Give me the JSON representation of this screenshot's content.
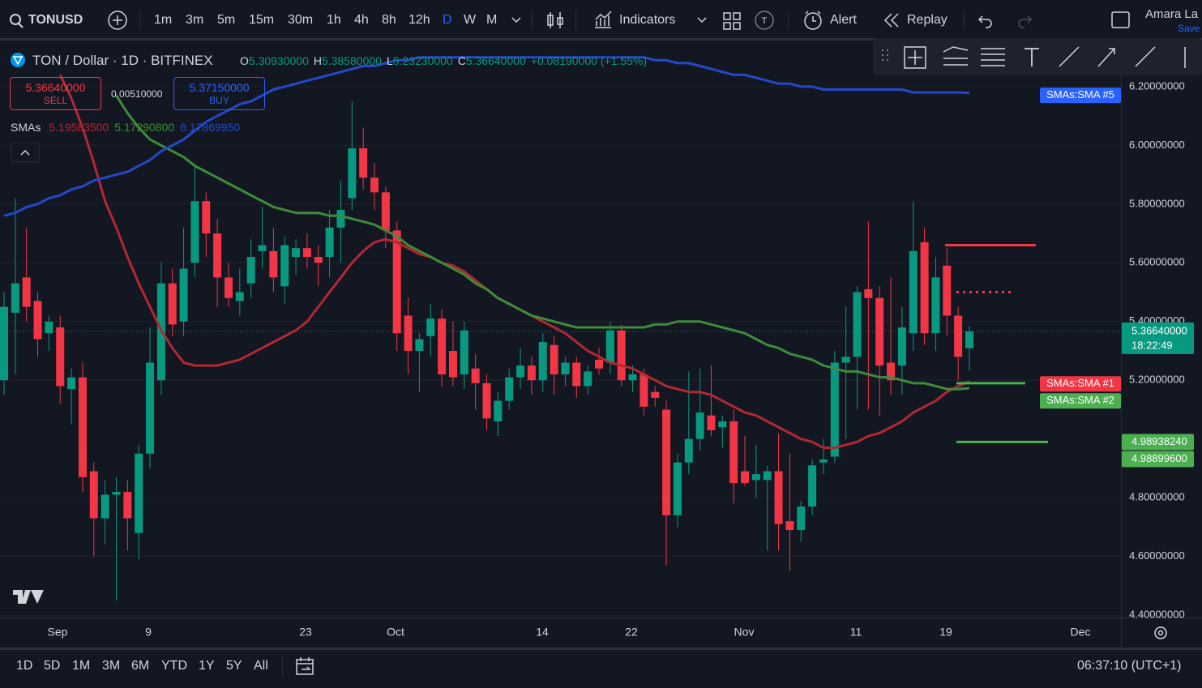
{
  "toolbar": {
    "symbol": "TONUSD",
    "intervals": [
      "1m",
      "3m",
      "5m",
      "15m",
      "30m",
      "1h",
      "4h",
      "8h",
      "12h",
      "D",
      "W",
      "M"
    ],
    "active_interval": "D",
    "indicators": "Indicators",
    "alert": "Alert",
    "replay": "Replay",
    "user": "Amara La",
    "save": "Save"
  },
  "legend": {
    "title": "TON / Dollar · 1D · BITFINEX",
    "ohlc": [
      {
        "key": "O",
        "value": "5.30930000"
      },
      {
        "key": "H",
        "value": "5.38580000"
      },
      {
        "key": "L",
        "value": "5.23230000"
      },
      {
        "key": "C",
        "value": "5.36640000"
      }
    ],
    "change": "+0.08190000 (+1.55%)",
    "sell": {
      "price": "5.36640000",
      "label": "SELL"
    },
    "spread": "0.00510000",
    "buy": {
      "price": "5.37150000",
      "label": "BUY"
    },
    "indicator": {
      "name": "SMAs",
      "values": [
        "5.19583500",
        "5.17290800",
        "6.17869950"
      ]
    }
  },
  "chart_data": {
    "type": "candlestick",
    "up_color": "#089981",
    "down_color": "#f23645",
    "ohlc": [
      [
        5.2,
        5.5,
        5.15,
        5.45
      ],
      [
        5.43,
        5.82,
        5.22,
        5.53
      ],
      [
        5.55,
        5.72,
        5.4,
        5.45
      ],
      [
        5.47,
        5.5,
        5.28,
        5.34
      ],
      [
        5.36,
        5.42,
        5.3,
        5.4
      ],
      [
        5.38,
        5.42,
        5.12,
        5.18
      ],
      [
        5.17,
        5.24,
        5.05,
        5.21
      ],
      [
        5.21,
        5.26,
        4.82,
        4.87
      ],
      [
        4.89,
        4.92,
        4.6,
        4.73
      ],
      [
        4.73,
        4.86,
        4.64,
        4.81
      ],
      [
        4.81,
        4.87,
        4.45,
        4.82
      ],
      [
        4.82,
        4.86,
        4.62,
        4.73
      ],
      [
        4.68,
        4.98,
        4.59,
        4.95
      ],
      [
        4.95,
        5.38,
        4.9,
        5.26
      ],
      [
        5.2,
        5.6,
        5.15,
        5.53
      ],
      [
        5.53,
        5.58,
        5.35,
        5.39
      ],
      [
        5.4,
        5.72,
        5.35,
        5.58
      ],
      [
        5.6,
        5.93,
        5.55,
        5.81
      ],
      [
        5.81,
        5.84,
        5.62,
        5.7
      ],
      [
        5.7,
        5.75,
        5.45,
        5.55
      ],
      [
        5.55,
        5.6,
        5.45,
        5.48
      ],
      [
        5.47,
        5.58,
        5.42,
        5.5
      ],
      [
        5.53,
        5.68,
        5.48,
        5.62
      ],
      [
        5.64,
        5.79,
        5.58,
        5.66
      ],
      [
        5.64,
        5.72,
        5.5,
        5.55
      ],
      [
        5.52,
        5.69,
        5.46,
        5.66
      ],
      [
        5.62,
        5.68,
        5.56,
        5.65
      ],
      [
        5.65,
        5.7,
        5.58,
        5.62
      ],
      [
        5.62,
        5.66,
        5.52,
        5.6
      ],
      [
        5.62,
        5.78,
        5.55,
        5.72
      ],
      [
        5.72,
        5.88,
        5.6,
        5.78
      ],
      [
        5.82,
        6.15,
        5.78,
        5.99
      ],
      [
        5.99,
        6.06,
        5.85,
        5.89
      ],
      [
        5.89,
        5.94,
        5.78,
        5.84
      ],
      [
        5.84,
        5.86,
        5.65,
        5.71
      ],
      [
        5.71,
        5.74,
        5.3,
        5.36
      ],
      [
        5.42,
        5.48,
        5.22,
        5.3
      ],
      [
        5.3,
        5.36,
        5.16,
        5.34
      ],
      [
        5.35,
        5.46,
        5.28,
        5.41
      ],
      [
        5.41,
        5.44,
        5.18,
        5.22
      ],
      [
        5.3,
        5.4,
        5.18,
        5.21
      ],
      [
        5.22,
        5.4,
        5.17,
        5.37
      ],
      [
        5.24,
        5.29,
        5.1,
        5.19
      ],
      [
        5.19,
        5.22,
        5.03,
        5.07
      ],
      [
        5.06,
        5.16,
        5.01,
        5.13
      ],
      [
        5.13,
        5.24,
        5.1,
        5.21
      ],
      [
        5.21,
        5.31,
        5.17,
        5.25
      ],
      [
        5.25,
        5.28,
        5.15,
        5.2
      ],
      [
        5.2,
        5.36,
        5.16,
        5.33
      ],
      [
        5.32,
        5.35,
        5.15,
        5.22
      ],
      [
        5.22,
        5.28,
        5.18,
        5.26
      ],
      [
        5.26,
        5.28,
        5.14,
        5.18
      ],
      [
        5.18,
        5.25,
        5.15,
        5.23
      ],
      [
        5.27,
        5.31,
        5.22,
        5.24
      ],
      [
        5.26,
        5.4,
        5.22,
        5.37
      ],
      [
        5.37,
        5.39,
        5.18,
        5.2
      ],
      [
        5.2,
        5.25,
        5.16,
        5.22
      ],
      [
        5.22,
        5.24,
        5.08,
        5.11
      ],
      [
        5.16,
        5.18,
        5.11,
        5.14
      ],
      [
        5.1,
        5.13,
        4.57,
        4.74
      ],
      [
        4.74,
        4.95,
        4.7,
        4.92
      ],
      [
        4.92,
        5.23,
        4.88,
        5.0
      ],
      [
        5.0,
        5.24,
        4.96,
        5.09
      ],
      [
        5.08,
        5.25,
        5.01,
        5.03
      ],
      [
        5.04,
        5.08,
        4.97,
        5.06
      ],
      [
        5.06,
        5.1,
        4.78,
        4.85
      ],
      [
        4.89,
        5.01,
        4.84,
        4.85
      ],
      [
        4.86,
        4.98,
        4.8,
        4.88
      ],
      [
        4.86,
        4.91,
        4.62,
        4.89
      ],
      [
        4.89,
        5.02,
        4.62,
        4.71
      ],
      [
        4.72,
        4.95,
        4.55,
        4.69
      ],
      [
        4.69,
        4.79,
        4.65,
        4.77
      ],
      [
        4.77,
        4.93,
        4.74,
        4.91
      ],
      [
        4.92,
        5.0,
        4.88,
        4.93
      ],
      [
        4.94,
        5.3,
        4.92,
        5.26
      ],
      [
        5.26,
        5.45,
        5.0,
        5.28
      ],
      [
        5.28,
        5.52,
        5.1,
        5.5
      ],
      [
        5.51,
        5.74,
        5.1,
        5.48
      ],
      [
        5.48,
        5.52,
        5.08,
        5.25
      ],
      [
        5.26,
        5.55,
        5.15,
        5.2
      ],
      [
        5.25,
        5.45,
        5.15,
        5.38
      ],
      [
        5.36,
        5.81,
        5.3,
        5.64
      ],
      [
        5.67,
        5.72,
        5.32,
        5.36
      ],
      [
        5.36,
        5.62,
        5.3,
        5.55
      ],
      [
        5.59,
        5.65,
        5.35,
        5.42
      ],
      [
        5.42,
        5.45,
        5.2,
        5.28
      ],
      [
        5.3093,
        5.3858,
        5.2323,
        5.3664
      ]
    ],
    "series": [
      {
        "name": "SMAs:SMA #1",
        "color": "#b22833",
        "values": [
          null,
          null,
          null,
          null,
          null,
          6.24,
          6.16,
          6.06,
          5.94,
          5.81,
          5.72,
          5.62,
          5.53,
          5.45,
          5.37,
          5.31,
          5.26,
          5.25,
          5.25,
          5.25,
          5.26,
          5.27,
          5.29,
          5.31,
          5.33,
          5.35,
          5.37,
          5.4,
          5.45,
          5.5,
          5.55,
          5.6,
          5.64,
          5.67,
          5.68,
          5.67,
          5.65,
          5.63,
          5.62,
          5.6,
          5.59,
          5.57,
          5.54,
          5.51,
          5.48,
          5.46,
          5.44,
          5.42,
          5.4,
          5.38,
          5.36,
          5.33,
          5.3,
          5.28,
          5.26,
          5.25,
          5.24,
          5.22,
          5.2,
          5.18,
          5.17,
          5.16,
          5.16,
          5.15,
          5.13,
          5.11,
          5.09,
          5.08,
          5.06,
          5.04,
          5.02,
          5.0,
          4.99,
          4.97,
          4.97,
          4.98,
          4.99,
          5.01,
          5.02,
          5.04,
          5.06,
          5.09,
          5.11,
          5.13,
          5.16,
          5.18,
          5.195835
        ],
        "badge_color": "#f23645"
      },
      {
        "name": "SMAs:SMA #2",
        "color": "#3f8a3c",
        "values": [
          null,
          null,
          null,
          null,
          null,
          null,
          null,
          null,
          null,
          null,
          6.17,
          6.11,
          6.06,
          6.02,
          6.0,
          5.98,
          5.96,
          5.93,
          5.91,
          5.89,
          5.87,
          5.85,
          5.83,
          5.81,
          5.79,
          5.78,
          5.77,
          5.77,
          5.77,
          5.76,
          5.76,
          5.75,
          5.74,
          5.73,
          5.71,
          5.69,
          5.66,
          5.64,
          5.62,
          5.6,
          5.58,
          5.56,
          5.53,
          5.51,
          5.48,
          5.46,
          5.44,
          5.42,
          5.41,
          5.4,
          5.39,
          5.38,
          5.38,
          5.38,
          5.38,
          5.38,
          5.38,
          5.38,
          5.39,
          5.39,
          5.4,
          5.4,
          5.4,
          5.39,
          5.38,
          5.37,
          5.36,
          5.34,
          5.32,
          5.31,
          5.29,
          5.28,
          5.27,
          5.25,
          5.24,
          5.23,
          5.23,
          5.22,
          5.21,
          5.21,
          5.2,
          5.19,
          5.19,
          5.18,
          5.17,
          5.17,
          5.172908
        ],
        "badge_color": "#4caf50"
      },
      {
        "name": "SMAs:SMA #5",
        "color": "#2548c8",
        "values": [
          5.76,
          5.77,
          5.79,
          5.8,
          5.82,
          5.83,
          5.85,
          5.86,
          5.88,
          5.89,
          5.9,
          5.91,
          5.93,
          5.95,
          5.98,
          6.0,
          6.02,
          6.05,
          6.08,
          6.1,
          6.12,
          6.14,
          6.15,
          6.17,
          6.19,
          6.2,
          6.21,
          6.22,
          6.23,
          6.24,
          6.25,
          6.26,
          6.27,
          6.27,
          6.28,
          6.29,
          6.29,
          6.3,
          6.3,
          6.3,
          6.3,
          6.3,
          6.3,
          6.3,
          6.3,
          6.3,
          6.3,
          6.3,
          6.3,
          6.3,
          6.3,
          6.3,
          6.3,
          6.3,
          6.3,
          6.3,
          6.3,
          6.3,
          6.29,
          6.29,
          6.28,
          6.28,
          6.27,
          6.26,
          6.25,
          6.24,
          6.24,
          6.23,
          6.22,
          6.21,
          6.21,
          6.2,
          6.2,
          6.19,
          6.19,
          6.19,
          6.19,
          6.19,
          6.19,
          6.19,
          6.19,
          6.18,
          6.18,
          6.18,
          6.18,
          6.18,
          6.1786995
        ],
        "badge_color": "#2962ff"
      }
    ],
    "ylim": [
      4.392,
      6.357
    ],
    "yticks": [
      {
        "value": 6.2,
        "label": "6.20000000"
      },
      {
        "value": 6.0,
        "label": "6.00000000"
      },
      {
        "value": 5.8,
        "label": "5.80000000"
      },
      {
        "value": 5.6,
        "label": "5.60000000"
      },
      {
        "value": 5.4,
        "label": "5.40000000"
      },
      {
        "value": 5.2,
        "label": "5.20000000"
      },
      {
        "value": 4.8,
        "label": "4.80000000"
      },
      {
        "value": 4.6,
        "label": "4.60000000"
      },
      {
        "value": 4.4,
        "label": "4.40000000"
      }
    ],
    "xticks": [
      "Sep",
      "9",
      "23",
      "Oct",
      "14",
      "22",
      "Nov",
      "11",
      "19",
      "Dec"
    ],
    "grid": true,
    "last_price": {
      "value": 5.3664,
      "label": "5.36640000",
      "countdown": "18:22:49",
      "color": "#089981"
    },
    "price_lines": [
      {
        "value": 5.66,
        "color": "#f23645",
        "style": "solid"
      },
      {
        "value": 5.5,
        "color": "#f23645",
        "style": "dotted"
      },
      {
        "value": 5.19,
        "color": "#4caf50",
        "style": "solid"
      },
      {
        "value": 4.99,
        "color": "#4caf50",
        "style": "solid"
      }
    ],
    "price_labels": [
      {
        "value": 4.9893824,
        "label": "4.98938240",
        "color": "#4caf50"
      },
      {
        "value": 4.988996,
        "label": "4.98899600",
        "color": "#4caf50"
      }
    ]
  },
  "bottom": {
    "ranges": [
      "1D",
      "5D",
      "1M",
      "3M",
      "6M",
      "YTD",
      "1Y",
      "5Y",
      "All"
    ],
    "clock": "06:37:10 (UTC+1)"
  }
}
